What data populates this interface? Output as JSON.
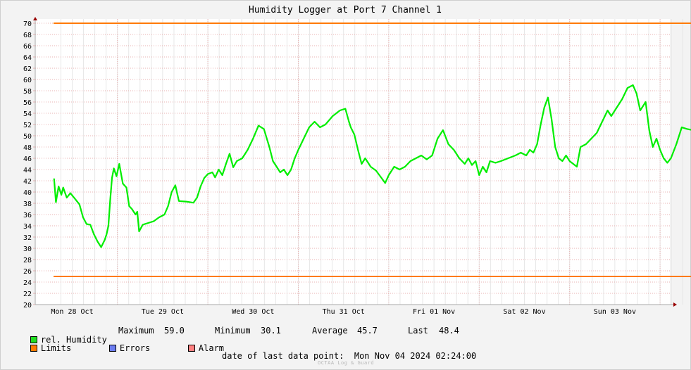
{
  "chart_data": {
    "type": "line",
    "title": "Humidity Logger at Port 7 Channel 1",
    "xlabel": "",
    "ylabel": "",
    "x_unit": "days since Mon Oct 28 2024 00:00",
    "x_range_days": [
      -0.2,
      7.1
    ],
    "ylim": [
      20,
      70
    ],
    "y_ticks": [
      20,
      22,
      24,
      26,
      28,
      30,
      32,
      34,
      36,
      38,
      40,
      42,
      44,
      46,
      48,
      50,
      52,
      54,
      56,
      58,
      60,
      62,
      64,
      66,
      68,
      70
    ],
    "x_tick_labels": [
      "Mon 28 Oct",
      "Tue 29 Oct",
      "Wed 30 Oct",
      "Thu 31 Oct",
      "Fri 01 Nov",
      "Sat 02 Nov",
      "Sun 03 Nov"
    ],
    "grid": true,
    "series": [
      {
        "name": "rel. Humidity",
        "color": "#00ee00",
        "points": [
          [
            -0.2,
            42.3
          ],
          [
            -0.18,
            38.2
          ],
          [
            -0.15,
            41.0
          ],
          [
            -0.12,
            39.5
          ],
          [
            -0.1,
            40.8
          ],
          [
            -0.06,
            39.0
          ],
          [
            -0.02,
            39.8
          ],
          [
            0.03,
            38.8
          ],
          [
            0.08,
            37.8
          ],
          [
            0.12,
            35.5
          ],
          [
            0.16,
            34.3
          ],
          [
            0.2,
            34.2
          ],
          [
            0.24,
            32.5
          ],
          [
            0.28,
            31.2
          ],
          [
            0.32,
            30.2
          ],
          [
            0.36,
            31.5
          ],
          [
            0.38,
            32.5
          ],
          [
            0.4,
            34.0
          ],
          [
            0.42,
            38.5
          ],
          [
            0.44,
            42.5
          ],
          [
            0.46,
            44.2
          ],
          [
            0.49,
            42.8
          ],
          [
            0.52,
            45.0
          ],
          [
            0.56,
            41.5
          ],
          [
            0.6,
            40.8
          ],
          [
            0.63,
            37.5
          ],
          [
            0.66,
            37.0
          ],
          [
            0.7,
            36.0
          ],
          [
            0.72,
            36.5
          ],
          [
            0.74,
            33.0
          ],
          [
            0.78,
            34.2
          ],
          [
            0.84,
            34.5
          ],
          [
            0.9,
            34.8
          ],
          [
            0.96,
            35.5
          ],
          [
            1.02,
            36.0
          ],
          [
            1.06,
            37.5
          ],
          [
            1.1,
            40.0
          ],
          [
            1.14,
            41.2
          ],
          [
            1.18,
            38.4
          ],
          [
            1.26,
            38.3
          ],
          [
            1.34,
            38.1
          ],
          [
            1.38,
            39.0
          ],
          [
            1.42,
            41.0
          ],
          [
            1.46,
            42.5
          ],
          [
            1.5,
            43.2
          ],
          [
            1.55,
            43.5
          ],
          [
            1.58,
            42.6
          ],
          [
            1.62,
            44.0
          ],
          [
            1.66,
            43.0
          ],
          [
            1.7,
            45.0
          ],
          [
            1.74,
            46.8
          ],
          [
            1.78,
            44.4
          ],
          [
            1.82,
            45.5
          ],
          [
            1.88,
            46.0
          ],
          [
            1.94,
            47.5
          ],
          [
            2.0,
            49.5
          ],
          [
            2.06,
            51.8
          ],
          [
            2.12,
            51.2
          ],
          [
            2.18,
            48.0
          ],
          [
            2.22,
            45.5
          ],
          [
            2.26,
            44.5
          ],
          [
            2.3,
            43.5
          ],
          [
            2.34,
            44.0
          ],
          [
            2.38,
            43.0
          ],
          [
            2.42,
            44.0
          ],
          [
            2.46,
            46.0
          ],
          [
            2.5,
            47.5
          ],
          [
            2.56,
            49.5
          ],
          [
            2.62,
            51.5
          ],
          [
            2.68,
            52.5
          ],
          [
            2.74,
            51.5
          ],
          [
            2.8,
            52.0
          ],
          [
            2.88,
            53.5
          ],
          [
            2.96,
            54.5
          ],
          [
            3.02,
            54.8
          ],
          [
            3.06,
            52.5
          ],
          [
            3.08,
            51.5
          ],
          [
            3.12,
            50.2
          ],
          [
            3.16,
            47.5
          ],
          [
            3.2,
            45.0
          ],
          [
            3.24,
            46.0
          ],
          [
            3.3,
            44.5
          ],
          [
            3.36,
            43.8
          ],
          [
            3.42,
            42.5
          ],
          [
            3.46,
            41.6
          ],
          [
            3.5,
            43.0
          ],
          [
            3.56,
            44.5
          ],
          [
            3.62,
            44.0
          ],
          [
            3.68,
            44.5
          ],
          [
            3.74,
            45.5
          ],
          [
            3.8,
            46.0
          ],
          [
            3.86,
            46.5
          ],
          [
            3.92,
            45.8
          ],
          [
            3.98,
            46.5
          ],
          [
            4.04,
            49.5
          ],
          [
            4.1,
            51.0
          ],
          [
            4.16,
            48.5
          ],
          [
            4.22,
            47.5
          ],
          [
            4.28,
            46.0
          ],
          [
            4.34,
            45.0
          ],
          [
            4.38,
            46.0
          ],
          [
            4.42,
            44.8
          ],
          [
            4.46,
            45.5
          ],
          [
            4.5,
            43.0
          ],
          [
            4.54,
            44.5
          ],
          [
            4.58,
            43.5
          ],
          [
            4.62,
            45.5
          ],
          [
            4.68,
            45.2
          ],
          [
            4.74,
            45.5
          ],
          [
            4.82,
            46.0
          ],
          [
            4.9,
            46.5
          ],
          [
            4.96,
            47.0
          ],
          [
            5.02,
            46.5
          ],
          [
            5.06,
            47.5
          ],
          [
            5.1,
            47.0
          ],
          [
            5.14,
            48.5
          ],
          [
            5.18,
            52.0
          ],
          [
            5.22,
            55.0
          ],
          [
            5.26,
            56.8
          ],
          [
            5.3,
            53.0
          ],
          [
            5.34,
            48.0
          ],
          [
            5.38,
            46.0
          ],
          [
            5.42,
            45.5
          ],
          [
            5.46,
            46.5
          ],
          [
            5.5,
            45.5
          ],
          [
            5.54,
            45.0
          ],
          [
            5.58,
            44.5
          ],
          [
            5.62,
            48.0
          ],
          [
            5.68,
            48.5
          ],
          [
            5.74,
            49.5
          ],
          [
            5.8,
            50.5
          ],
          [
            5.86,
            52.5
          ],
          [
            5.92,
            54.5
          ],
          [
            5.96,
            53.5
          ],
          [
            6.02,
            55.0
          ],
          [
            6.08,
            56.5
          ],
          [
            6.14,
            58.5
          ],
          [
            6.2,
            59.0
          ],
          [
            6.24,
            57.5
          ],
          [
            6.28,
            54.5
          ],
          [
            6.34,
            56.0
          ],
          [
            6.38,
            51.0
          ],
          [
            6.42,
            48.0
          ],
          [
            6.46,
            49.5
          ],
          [
            6.5,
            47.5
          ],
          [
            6.54,
            46.0
          ],
          [
            6.58,
            45.2
          ],
          [
            6.62,
            46.0
          ],
          [
            6.68,
            48.5
          ],
          [
            6.74,
            51.5
          ],
          [
            6.8,
            51.2
          ],
          [
            6.86,
            51.0
          ],
          [
            6.92,
            51.0
          ],
          [
            6.98,
            50.2
          ],
          [
            7.02,
            49.5
          ],
          [
            7.06,
            48.8
          ],
          [
            7.1,
            48.4
          ]
        ]
      },
      {
        "name": "Limits",
        "color": "#ff7a00",
        "points": [
          [
            -0.2,
            70
          ],
          [
            7.1,
            70
          ]
        ]
      },
      {
        "name": "Limits",
        "color": "#ff7a00",
        "points": [
          [
            -0.2,
            25
          ],
          [
            7.1,
            25
          ]
        ]
      }
    ]
  },
  "legend": {
    "humidity": {
      "label": "rel. Humidity",
      "color": "#22dd22"
    },
    "limits": {
      "label": "Limits",
      "color": "#ff7a00"
    },
    "errors": {
      "label": "Errors",
      "color": "#6b7cf0"
    },
    "alarm": {
      "label": "Alarm",
      "color": "#ff8080"
    }
  },
  "stats": {
    "maximum_label": "Maximum",
    "maximum_value": "59.0",
    "minimum_label": "Minimum",
    "minimum_value": "30.1",
    "average_label": "Average",
    "average_value": "45.7",
    "last_label": "Last",
    "last_value": "48.4"
  },
  "footer": {
    "last_data_point": "date of last data point:  Mon Nov 04 2024 02:24:00",
    "watermark": "OCTAA Log & Guard"
  },
  "colors": {
    "background": "#f3f3f3",
    "plot_background": "#ffffff",
    "grid_major": "#e8b0b0",
    "grid_minor": "#e7e7e7",
    "axis": "#aaaaaa",
    "arrow": "#990000"
  }
}
